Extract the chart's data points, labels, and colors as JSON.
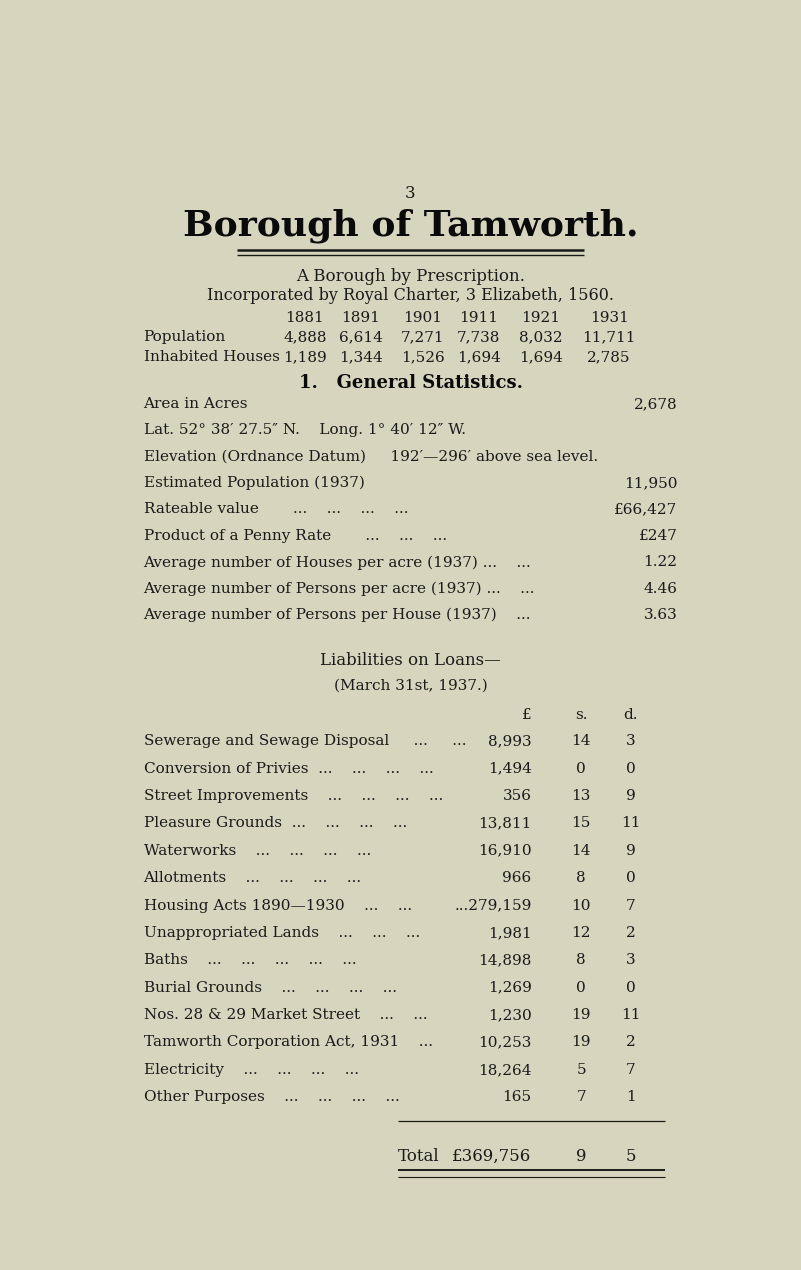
{
  "bg_color": "#d8d5be",
  "page_number": "3",
  "title": "Borough of Tamworth.",
  "subtitle1": "A Borough by Prescription.",
  "subtitle2": "Incorporated by Royal Charter, 3 Elizabeth, 1560.",
  "pop_years": [
    "1881",
    "1891",
    "1901",
    "1911",
    "1921",
    "1931"
  ],
  "pop_values": [
    "4,888",
    "6,614",
    "7,271",
    "7,738",
    "8,032",
    "11,711"
  ],
  "houses_values": [
    "1,189",
    "1,344",
    "1,526",
    "1,694",
    "1,694",
    "2,785"
  ],
  "section_header": "1.   General Statistics.",
  "liabilities_header1": "Liabilities on Loans—",
  "liabilities_header2": "(March 31st, 1937.)",
  "liab_col_headers": [
    "£",
    "s.",
    "d."
  ],
  "liab_rows": [
    [
      "Sewerage and Sewage Disposal     ...     ...",
      "8,993",
      "14",
      "3"
    ],
    [
      "Conversion of Privies  ...    ...    ...    ...",
      "1,494",
      "0",
      "0"
    ],
    [
      "Street Improvements    ...    ...    ...    ...",
      "356",
      "13",
      "9"
    ],
    [
      "Pleasure Grounds  ...    ...    ...    ...",
      "13,811",
      "15",
      "11"
    ],
    [
      "Waterworks    ...    ...    ...    ...",
      "16,910",
      "14",
      "9"
    ],
    [
      "Allotments    ...    ...    ...    ...",
      "966",
      "8",
      "0"
    ],
    [
      "Housing Acts 1890—1930    ...    ...",
      "...279,159",
      "10",
      "7"
    ],
    [
      "Unappropriated Lands    ...    ...    ...",
      "1,981",
      "12",
      "2"
    ],
    [
      "Baths    ...    ...    ...    ...    ...",
      "14,898",
      "8",
      "3"
    ],
    [
      "Burial Grounds    ...    ...    ...    ...",
      "1,269",
      "0",
      "0"
    ],
    [
      "Nos. 28 & 29 Market Street    ...    ...",
      "1,230",
      "19",
      "11"
    ],
    [
      "Tamworth Corporation Act, 1931    ...",
      "10,253",
      "19",
      "2"
    ],
    [
      "Electricity    ...    ...    ...    ...",
      "18,264",
      "5",
      "7"
    ],
    [
      "Other Purposes    ...    ...    ...    ...",
      "165",
      "7",
      "1"
    ]
  ],
  "total_label": "Total",
  "total_value": "£369,756",
  "total_s": "9",
  "total_d": "5"
}
